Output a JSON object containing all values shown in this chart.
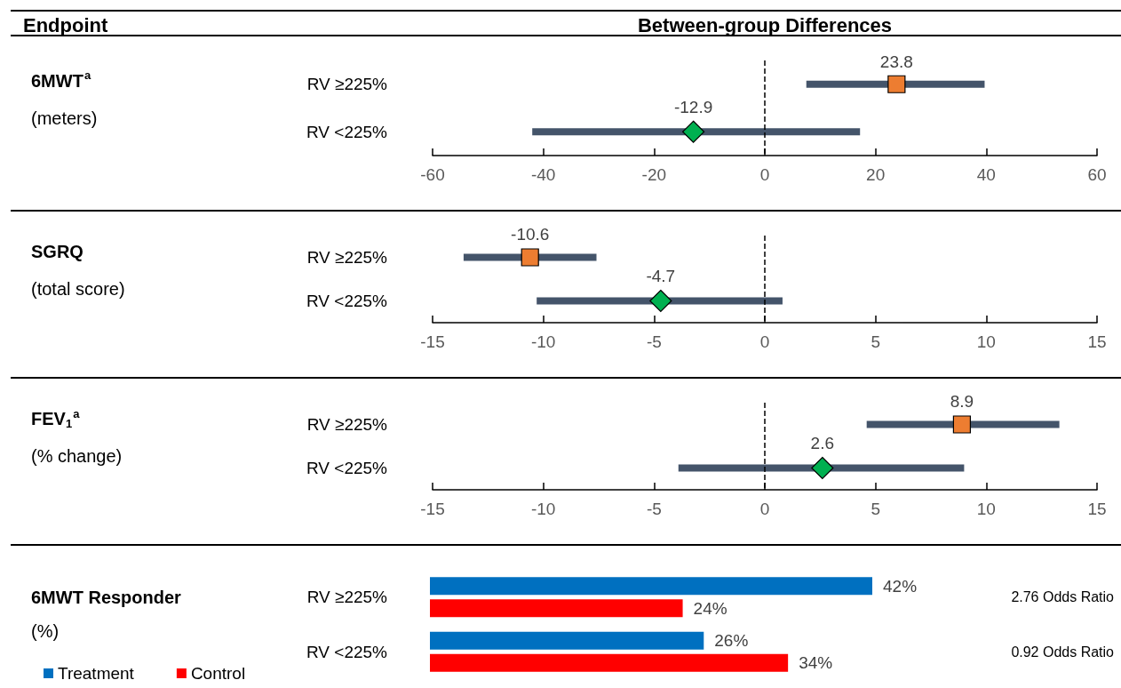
{
  "chart_data": [
    {
      "type": "scatter",
      "orientation": "horizontal",
      "ylabel": "6MWT$^{a}$\n(meters)",
      "annotations": [
        "Endpoint",
        "Between-group Differences"
      ],
      "categories": [
        "RV ≥225%",
        "RV <225%"
      ],
      "series": [
        {
          "color": "#ed7d31",
          "marker": "square",
          "values": [
            23.8,
            null
          ],
          "errors": [
            [
              7.5,
              39.7
            ],
            null
          ]
        },
        {
          "color": "#00b050",
          "marker": "diamond",
          "values": [
            null,
            -12.9
          ],
          "errors": [
            null,
            [
              -42.0,
              17.2
            ]
          ]
        }
      ],
      "xlim": [
        -60,
        60
      ],
      "xticks": [
        -60,
        -40,
        -20,
        0,
        20,
        40,
        60
      ],
      "ref_lines": [
        {
          "axis": "x",
          "value": 0,
          "line_style": "dashed",
          "color": "#000000"
        }
      ],
      "data_labels": true
    },
    {
      "type": "scatter",
      "orientation": "horizontal",
      "ylabel": "SGRQ\n(total score)",
      "categories": [
        "RV ≥225%",
        "RV <225%"
      ],
      "series": [
        {
          "color": "#ed7d31",
          "marker": "square",
          "values": [
            -10.6,
            null
          ],
          "errors": [
            [
              -13.6,
              -7.6
            ],
            null
          ]
        },
        {
          "color": "#00b050",
          "marker": "diamond",
          "values": [
            null,
            -4.7
          ],
          "errors": [
            null,
            [
              -10.3,
              0.8
            ]
          ]
        }
      ],
      "xlim": [
        -15,
        15
      ],
      "xticks": [
        -15,
        -10,
        -5,
        0,
        5,
        10,
        15
      ],
      "ref_lines": [
        {
          "axis": "x",
          "value": 0,
          "line_style": "dashed",
          "color": "#000000"
        }
      ],
      "data_labels": true
    },
    {
      "type": "scatter",
      "orientation": "horizontal",
      "ylabel": "FEV$_{1}$$^{a}$\n(% change)",
      "categories": [
        "RV ≥225%",
        "RV <225%"
      ],
      "series": [
        {
          "color": "#ed7d31",
          "marker": "square",
          "values": [
            8.9,
            null
          ],
          "errors": [
            [
              4.6,
              13.3
            ],
            null
          ]
        },
        {
          "color": "#00b050",
          "marker": "diamond",
          "values": [
            null,
            2.6
          ],
          "errors": [
            null,
            [
              -3.9,
              9.0
            ]
          ]
        }
      ],
      "xlim": [
        -15,
        15
      ],
      "xticks": [
        -15,
        -10,
        -5,
        0,
        5,
        10,
        15
      ],
      "ref_lines": [
        {
          "axis": "x",
          "value": 0,
          "line_style": "dashed",
          "color": "#000000"
        }
      ],
      "data_labels": true
    },
    {
      "type": "bar",
      "orientation": "horizontal",
      "ylabel": "6MWT Responder\n(%)",
      "categories": [
        "RV ≥225%",
        "RV <225%"
      ],
      "series": [
        {
          "name": "Treatment",
          "color": "#0070c0",
          "values": [
            42,
            26
          ],
          "value_labels": [
            "42%",
            "26%"
          ]
        },
        {
          "name": "Control",
          "color": "#ff0000",
          "values": [
            24,
            34
          ],
          "value_labels": [
            "24%",
            "34%"
          ]
        }
      ],
      "legend": "bottom left",
      "tick_labels": "y",
      "annotations": [
        "2.76 Odds Ratio",
        "0.92 Odds Ratio"
      ]
    }
  ]
}
